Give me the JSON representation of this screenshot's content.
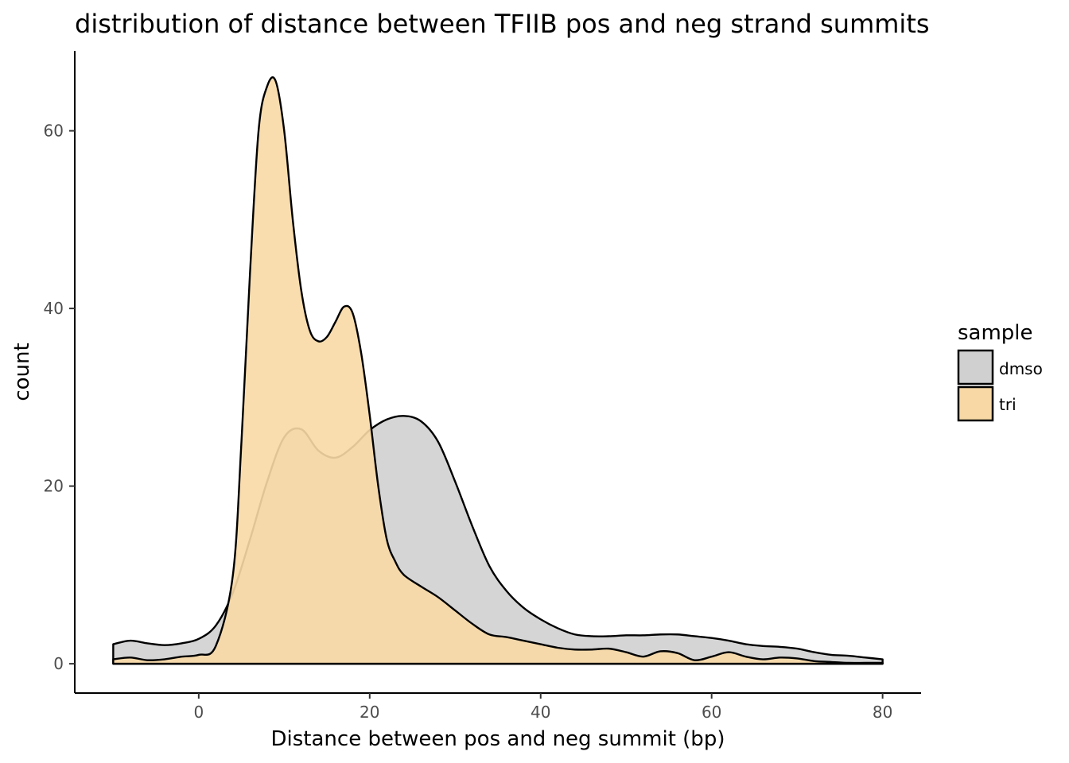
{
  "chart_data": {
    "type": "area",
    "title": "distribution of distance between TFIIB pos and neg strand summits",
    "xlabel": "Distance between pos and neg summit (bp)",
    "ylabel": "count",
    "xlim": [
      -14.5,
      84.5
    ],
    "ylim": [
      -3.3,
      69
    ],
    "x_ticks": [
      0,
      20,
      40,
      60,
      80
    ],
    "y_ticks": [
      0,
      20,
      40,
      60
    ],
    "grid": false,
    "legend": {
      "title": "sample",
      "position": "right",
      "entries": [
        "dmso",
        "tri"
      ]
    },
    "series": [
      {
        "name": "dmso",
        "color": "#d0d0d0",
        "x": [
          -10,
          -8,
          -6,
          -4,
          -2,
          0,
          2,
          4,
          6,
          8,
          10,
          12,
          14,
          16,
          18,
          20,
          22,
          24,
          26,
          28,
          30,
          32,
          34,
          36,
          38,
          40,
          42,
          44,
          46,
          48,
          50,
          52,
          54,
          56,
          58,
          60,
          62,
          64,
          66,
          68,
          70,
          72,
          74,
          76,
          78,
          80
        ],
        "values": [
          2.2,
          2.6,
          2.3,
          2.1,
          2.3,
          2.8,
          4.3,
          8.0,
          14.0,
          20.5,
          25.5,
          26.4,
          24.0,
          23.2,
          24.4,
          26.3,
          27.5,
          27.9,
          27.3,
          25.0,
          20.5,
          15.5,
          11.0,
          8.2,
          6.3,
          5.0,
          4.0,
          3.3,
          3.1,
          3.1,
          3.2,
          3.2,
          3.3,
          3.3,
          3.1,
          2.9,
          2.6,
          2.2,
          2.0,
          1.9,
          1.7,
          1.3,
          1.0,
          0.9,
          0.7,
          0.5
        ]
      },
      {
        "name": "tri",
        "color": "#f8d9a6",
        "x": [
          -10,
          -8,
          -6,
          -4,
          -2,
          0,
          2,
          4,
          5,
          6,
          7,
          8,
          9,
          10,
          11,
          12,
          13,
          14,
          15,
          16,
          17,
          18,
          19,
          20,
          21,
          22,
          23,
          24,
          26,
          28,
          30,
          32,
          34,
          36,
          38,
          40,
          42,
          44,
          46,
          48,
          50,
          52,
          54,
          56,
          58,
          60,
          62,
          64,
          66,
          68,
          70,
          72,
          74,
          76,
          78,
          80
        ],
        "values": [
          0.5,
          0.7,
          0.4,
          0.5,
          0.8,
          1.0,
          2.0,
          10.0,
          25.0,
          44.0,
          60.0,
          65.0,
          65.6,
          60.0,
          50.0,
          42.0,
          37.5,
          36.3,
          36.8,
          38.5,
          40.2,
          39.5,
          35.0,
          28.0,
          20.0,
          14.0,
          11.5,
          10.0,
          8.7,
          7.5,
          6.0,
          4.5,
          3.3,
          3.0,
          2.6,
          2.2,
          1.8,
          1.6,
          1.6,
          1.7,
          1.3,
          0.8,
          1.4,
          1.2,
          0.4,
          0.8,
          1.3,
          0.8,
          0.5,
          0.7,
          0.6,
          0.3,
          0.2,
          0.1,
          0.1,
          0.1
        ]
      }
    ]
  }
}
